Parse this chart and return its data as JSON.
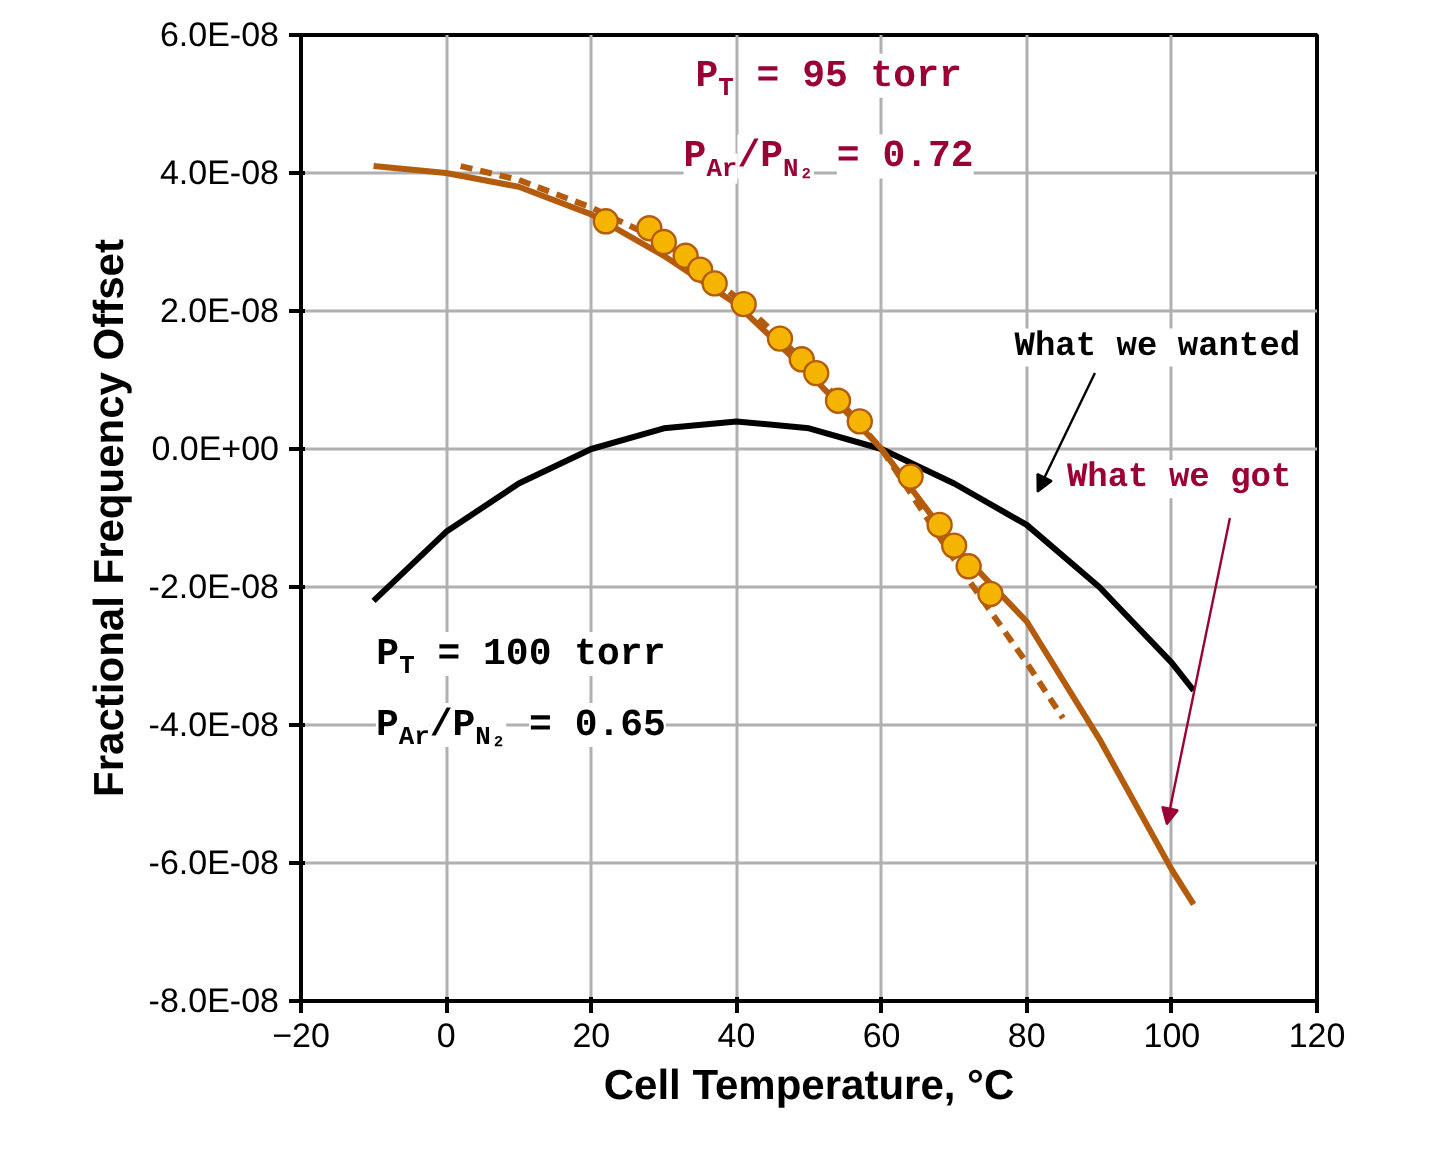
{
  "chart_data": {
    "type": "line",
    "xlabel": "Cell Temperature, °C",
    "ylabel": "Fractional Frequency Offset",
    "xlim": [
      -20,
      120
    ],
    "xticks": [
      -20,
      0,
      20,
      40,
      60,
      80,
      100,
      120
    ],
    "ylim": [
      -8e-08,
      6e-08
    ],
    "yticks": [
      {
        "value": -8e-08,
        "label": "-8.0E-08"
      },
      {
        "value": -6e-08,
        "label": "-6.0E-08"
      },
      {
        "value": -4e-08,
        "label": "-4.0E-08"
      },
      {
        "value": -2e-08,
        "label": "-2.0E-08"
      },
      {
        "value": 0,
        "label": "0.0E+00"
      },
      {
        "value": 2e-08,
        "label": "2.0E-08"
      },
      {
        "value": 4e-08,
        "label": "4.0E-08"
      },
      {
        "value": 6e-08,
        "label": "6.0E-08"
      }
    ],
    "grid": true,
    "series": [
      {
        "color": "#000000",
        "line_style": "solid",
        "x": [
          -10,
          0,
          10,
          20,
          30,
          40,
          50,
          60,
          70,
          80,
          90,
          100,
          103
        ],
        "values": [
          -2.2e-08,
          -1.2e-08,
          -5e-09,
          0,
          3e-09,
          4e-09,
          3e-09,
          0,
          -5e-09,
          -1.1e-08,
          -2e-08,
          -3.1e-08,
          -3.5e-08
        ]
      },
      {
        "color": "#b35c0e",
        "line_style": "solid",
        "x": [
          -10,
          0,
          10,
          20,
          30,
          40,
          50,
          60,
          70,
          80,
          90,
          100,
          103
        ],
        "values": [
          4.1e-08,
          4e-08,
          3.8e-08,
          3.4e-08,
          2.8e-08,
          2.1e-08,
          1.1e-08,
          0,
          -1.4e-08,
          -2.5e-08,
          -4.2e-08,
          -6.1e-08,
          -6.6e-08
        ]
      },
      {
        "color": "#b35c0e",
        "line_style": "dashed",
        "x": [
          2,
          10,
          20,
          30,
          40,
          50,
          60,
          70,
          80,
          85
        ],
        "values": [
          4.1e-08,
          3.9e-08,
          3.5e-08,
          3e-08,
          2.2e-08,
          1.2e-08,
          0,
          -1.6e-08,
          -3.1e-08,
          -3.9e-08
        ]
      },
      {
        "type": "scatter",
        "color": "#f5b400",
        "marker": "circle",
        "x": [
          22,
          28,
          30,
          33,
          35,
          37,
          41,
          46,
          49,
          51,
          54,
          57,
          64,
          68,
          70,
          72,
          75
        ],
        "values": [
          3.3e-08,
          3.2e-08,
          3e-08,
          2.8e-08,
          2.6e-08,
          2.4e-08,
          2.1e-08,
          1.6e-08,
          1.3e-08,
          1.1e-08,
          7e-09,
          4e-09,
          -4e-09,
          -1.1e-08,
          -1.4e-08,
          -1.7e-08,
          -2.1e-08
        ]
      }
    ],
    "annotations": [
      "P$_{T}$ = 95 torr",
      "P$_{Ar}$/P$_{N₂}$ = 0.72",
      "What we wanted",
      "What we got",
      "P$_{T}$ = 100 torr",
      "P$_{Ar}$/P$_{N₂}$ = 0.65"
    ]
  }
}
